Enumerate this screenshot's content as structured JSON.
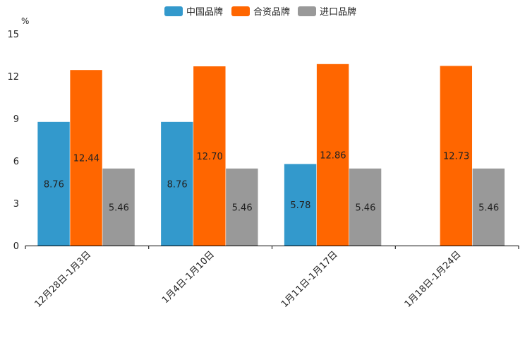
{
  "chart_data": {
    "type": "bar",
    "ylabel": "%",
    "ylim": [
      0,
      15
    ],
    "yticks": [
      0,
      3,
      6,
      9,
      12,
      15
    ],
    "categories": [
      "12月28日-1月3日",
      "1月4日-1月10日",
      "1月11日-1月17日",
      "1月18日-1月24日"
    ],
    "series": [
      {
        "name": "中国品牌",
        "color": "#3399CC",
        "values": [
          8.76,
          8.76,
          5.78,
          null
        ],
        "labels": [
          "8.76",
          "8.76",
          "5.78",
          ""
        ]
      },
      {
        "name": "合资品牌",
        "color": "#FF6600",
        "values": [
          12.44,
          12.7,
          12.86,
          12.73
        ],
        "labels": [
          "12.44",
          "12.70",
          "12.86",
          "12.73"
        ]
      },
      {
        "name": "进口品牌",
        "color": "#999999",
        "values": [
          5.46,
          5.46,
          5.46,
          5.46
        ],
        "labels": [
          "5.46",
          "5.46",
          "5.46",
          "5.46"
        ]
      }
    ],
    "legend_position": "top-center"
  }
}
